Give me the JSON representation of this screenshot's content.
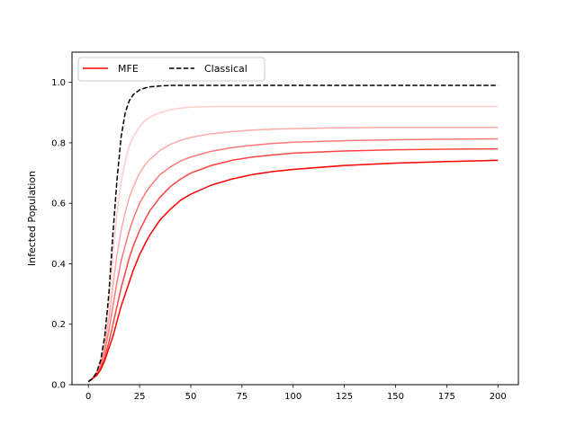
{
  "chart_data": {
    "type": "line",
    "title": "",
    "xlabel": "",
    "ylabel": "Infected Population",
    "xlim": [
      -8,
      210
    ],
    "ylim": [
      0.0,
      1.1
    ],
    "xticks": [
      "0",
      "25",
      "50",
      "75",
      "100",
      "125",
      "150",
      "175",
      "200"
    ],
    "yticks": [
      "0.0",
      "0.2",
      "0.4",
      "0.6",
      "0.8",
      "1.0"
    ],
    "grid": false,
    "legend": {
      "placement": "top-left",
      "entries": [
        {
          "label": "MFE",
          "color": "#ff0000",
          "dash": "solid"
        },
        {
          "label": "Classical",
          "color": "#000000",
          "dash": "dashed"
        }
      ]
    },
    "x": [
      0,
      2,
      4,
      6,
      8,
      10,
      12,
      14,
      16,
      18,
      20,
      22,
      25,
      28,
      30,
      35,
      40,
      45,
      50,
      60,
      70,
      80,
      90,
      100,
      125,
      150,
      175,
      200
    ],
    "series": [
      {
        "name": "Classical",
        "color": "#000000",
        "dash": "dashed",
        "values": [
          0.01,
          0.02,
          0.04,
          0.08,
          0.16,
          0.3,
          0.5,
          0.68,
          0.82,
          0.9,
          0.94,
          0.96,
          0.975,
          0.982,
          0.985,
          0.988,
          0.99,
          0.99,
          0.99,
          0.99,
          0.99,
          0.99,
          0.99,
          0.99,
          0.99,
          0.99,
          0.99,
          0.99
        ]
      },
      {
        "name": "MFE",
        "color": "#ffcccc",
        "dash": "solid",
        "values": [
          0.01,
          0.02,
          0.04,
          0.08,
          0.15,
          0.27,
          0.43,
          0.57,
          0.67,
          0.74,
          0.79,
          0.82,
          0.855,
          0.875,
          0.885,
          0.9,
          0.91,
          0.915,
          0.918,
          0.92,
          0.92,
          0.92,
          0.92,
          0.92,
          0.92,
          0.92,
          0.92,
          0.92
        ]
      },
      {
        "name": "MFE",
        "color": "#ffaaaa",
        "dash": "solid",
        "values": [
          0.01,
          0.02,
          0.04,
          0.07,
          0.13,
          0.22,
          0.33,
          0.43,
          0.51,
          0.57,
          0.62,
          0.655,
          0.7,
          0.73,
          0.745,
          0.775,
          0.795,
          0.808,
          0.818,
          0.83,
          0.837,
          0.842,
          0.845,
          0.847,
          0.85,
          0.851,
          0.851,
          0.851
        ]
      },
      {
        "name": "MFE",
        "color": "#ff7777",
        "dash": "solid",
        "values": [
          0.01,
          0.02,
          0.035,
          0.065,
          0.11,
          0.18,
          0.26,
          0.34,
          0.41,
          0.46,
          0.51,
          0.55,
          0.6,
          0.635,
          0.655,
          0.695,
          0.72,
          0.74,
          0.753,
          0.772,
          0.784,
          0.792,
          0.798,
          0.802,
          0.807,
          0.81,
          0.812,
          0.813
        ]
      },
      {
        "name": "MFE",
        "color": "#ff4444",
        "dash": "solid",
        "values": [
          0.01,
          0.02,
          0.033,
          0.055,
          0.09,
          0.14,
          0.2,
          0.26,
          0.32,
          0.37,
          0.42,
          0.46,
          0.51,
          0.55,
          0.575,
          0.62,
          0.655,
          0.68,
          0.7,
          0.725,
          0.742,
          0.753,
          0.76,
          0.766,
          0.773,
          0.777,
          0.779,
          0.78
        ]
      },
      {
        "name": "MFE",
        "color": "#ff0000",
        "dash": "solid",
        "values": [
          0.01,
          0.02,
          0.03,
          0.05,
          0.08,
          0.12,
          0.16,
          0.21,
          0.26,
          0.3,
          0.34,
          0.38,
          0.43,
          0.47,
          0.495,
          0.545,
          0.58,
          0.61,
          0.63,
          0.66,
          0.68,
          0.695,
          0.705,
          0.712,
          0.725,
          0.733,
          0.738,
          0.742
        ]
      }
    ]
  }
}
